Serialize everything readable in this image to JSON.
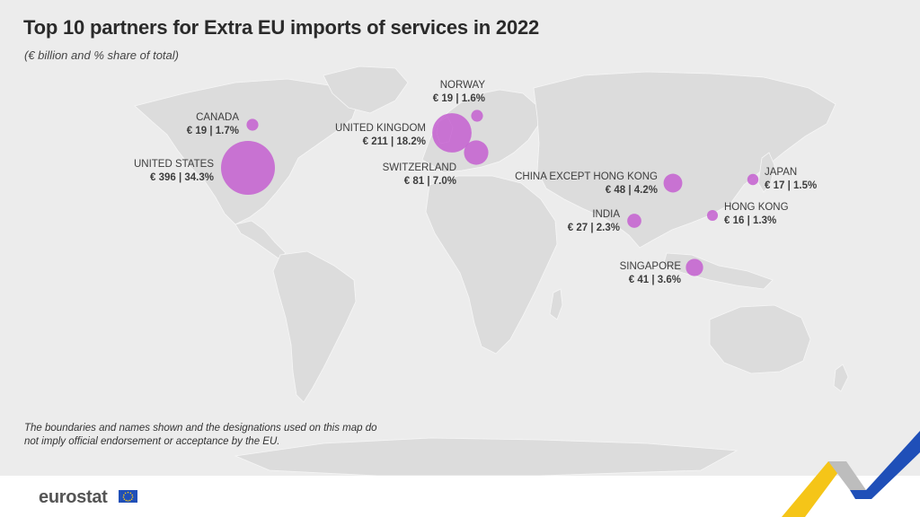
{
  "title": "Top 10 partners for Extra EU imports of services in 2022",
  "subtitle": "(€ billion and % share of total)",
  "disclaimer": "The boundaries and names shown and the designations used on this map do not imply official endorsement or acceptance by the EU.",
  "brand": {
    "name": "eurostat",
    "flag_icon": "eu-flag-icon"
  },
  "colors": {
    "bubble": "#c45fd0",
    "land": "#dcdcdc",
    "background": "#ececec",
    "ribbon_blue": "#1f4fb8",
    "ribbon_yellow": "#f5c518"
  },
  "chart_data": {
    "type": "bubble-map",
    "title": "Top 10 partners for Extra EU imports of services in 2022",
    "subtitle": "(€ billion and % share of total)",
    "unit": "€ billion",
    "partners": [
      {
        "name": "UNITED STATES",
        "value": 396,
        "share": 34.3,
        "label": "€ 396 | 34.3%"
      },
      {
        "name": "UNITED KINGDOM",
        "value": 211,
        "share": 18.2,
        "label": "€ 211 | 18.2%"
      },
      {
        "name": "SWITZERLAND",
        "value": 81,
        "share": 7.0,
        "label": "€ 81 | 7.0%"
      },
      {
        "name": "CHINA EXCEPT HONG KONG",
        "value": 48,
        "share": 4.2,
        "label": "€ 48 | 4.2%"
      },
      {
        "name": "SINGAPORE",
        "value": 41,
        "share": 3.6,
        "label": "€ 41 | 3.6%"
      },
      {
        "name": "INDIA",
        "value": 27,
        "share": 2.3,
        "label": "€ 27 | 2.3%"
      },
      {
        "name": "CANADA",
        "value": 19,
        "share": 1.7,
        "label": "€ 19 | 1.7%"
      },
      {
        "name": "NORWAY",
        "value": 19,
        "share": 1.6,
        "label": "€ 19 | 1.6%"
      },
      {
        "name": "JAPAN",
        "value": 17,
        "share": 1.5,
        "label": "€ 17 | 1.5%"
      },
      {
        "name": "HONG KONG",
        "value": 16,
        "share": 1.3,
        "label": "€ 16 | 1.3%"
      }
    ]
  }
}
